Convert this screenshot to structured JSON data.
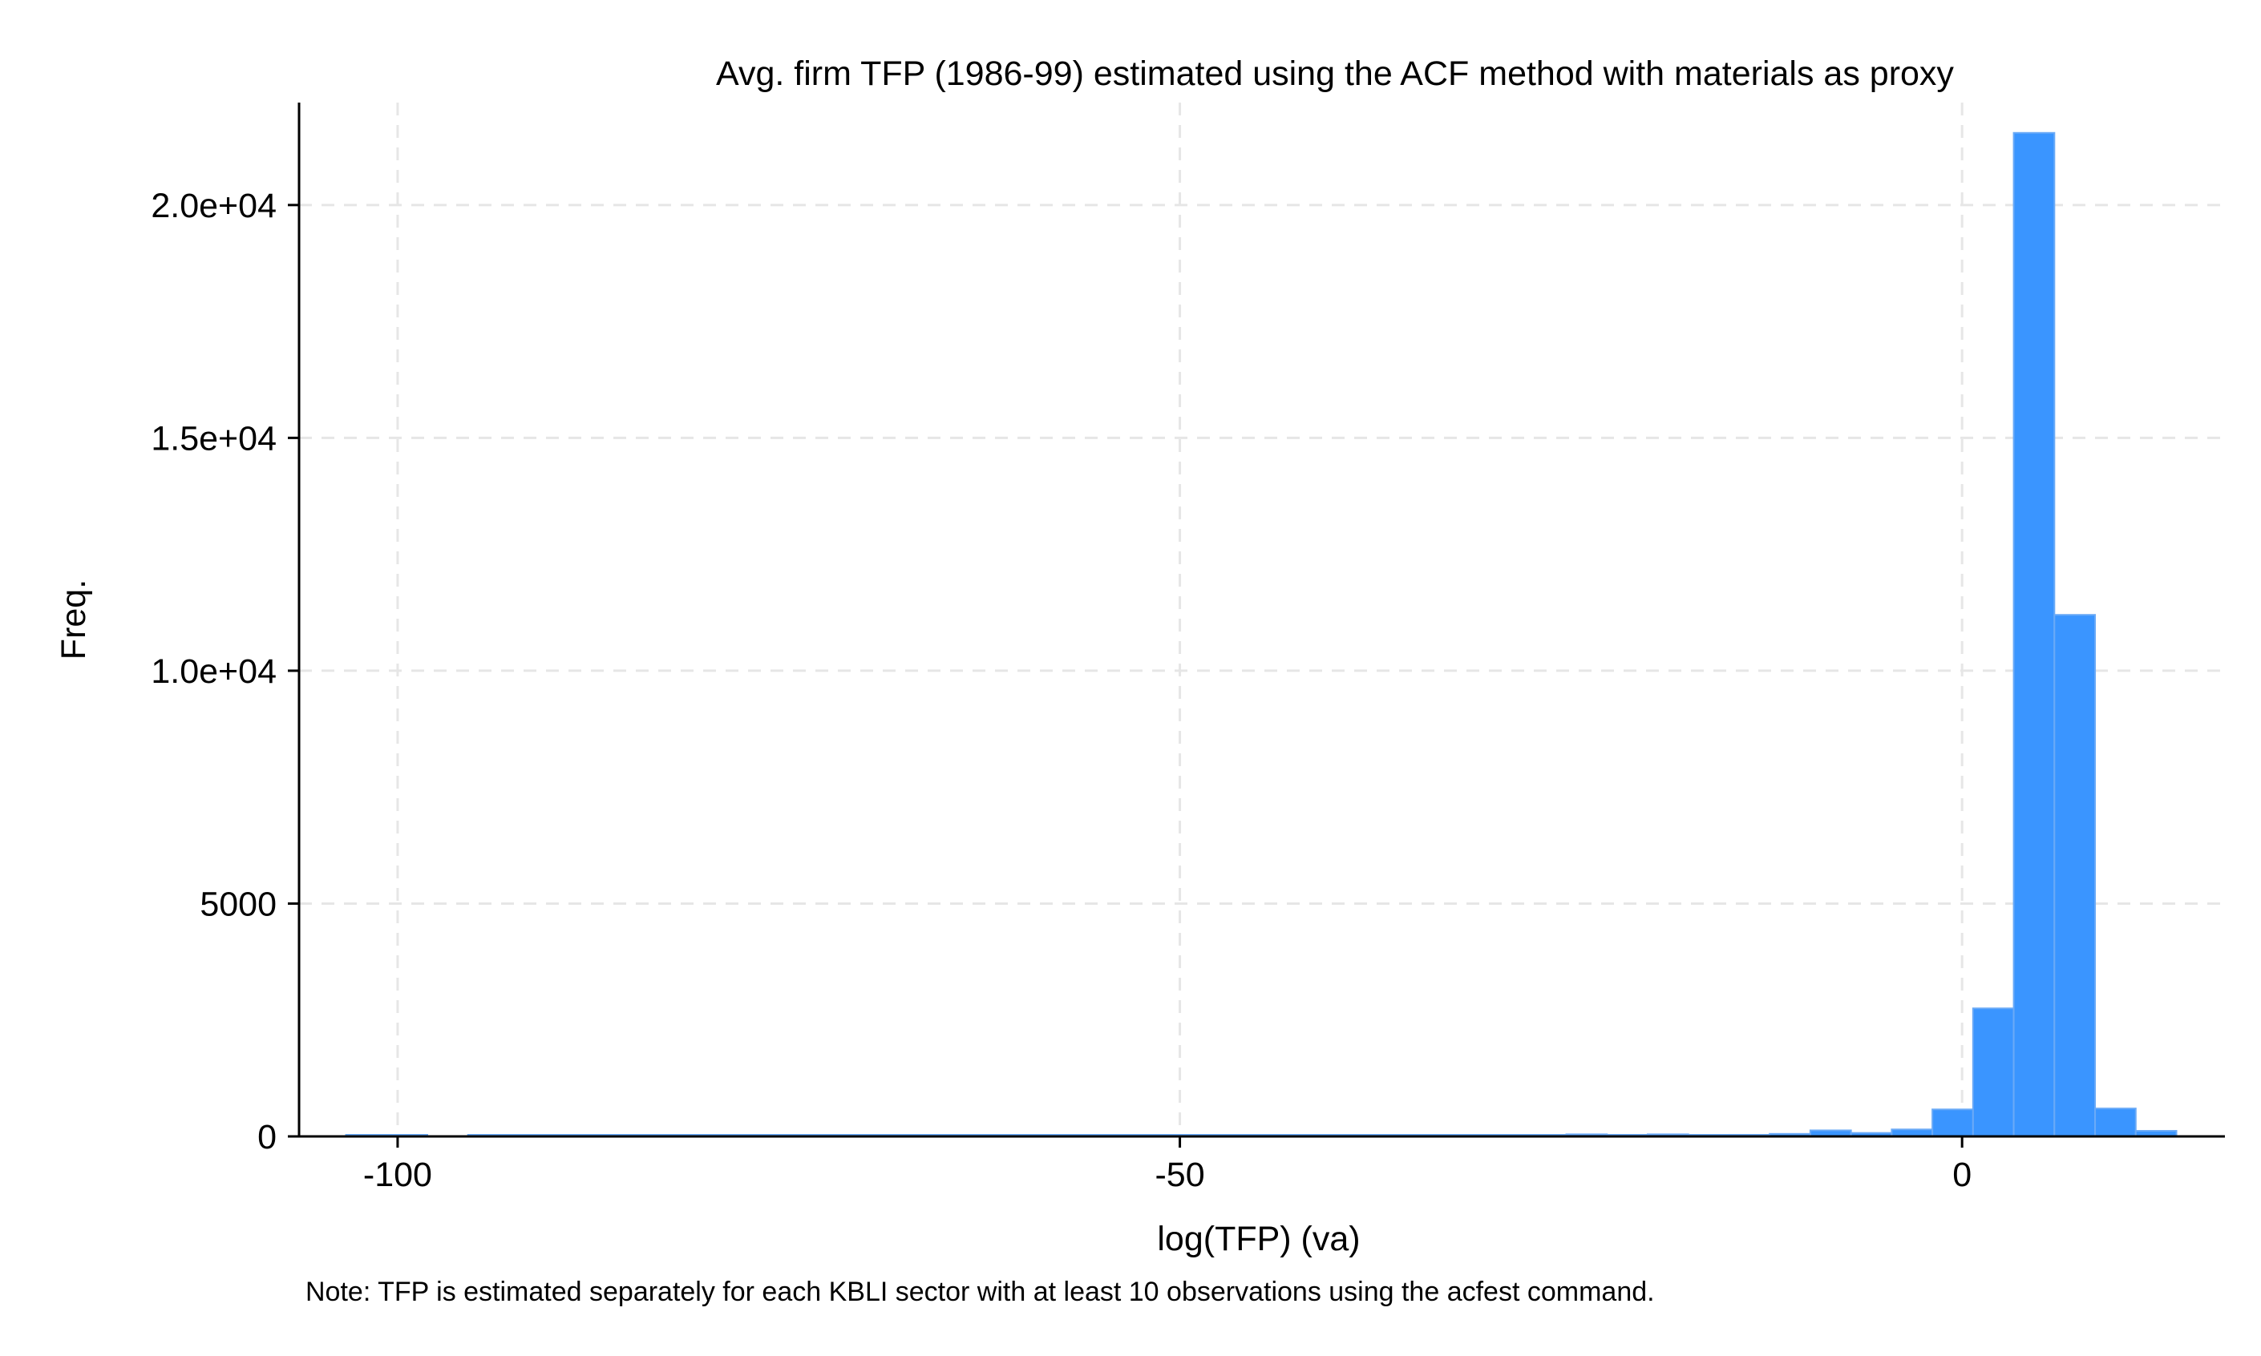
{
  "chart_data": {
    "type": "bar",
    "subtype": "histogram",
    "title": "Avg. firm TFP (1986-99) estimated using the ACF method with materials as proxy",
    "xlabel": "log(TFP) (va)",
    "ylabel": "Freq.",
    "note": "Note: TFP is estimated separately for each KBLI sector with at least 10 observations using the acfest command.",
    "xlim": [
      -106.3,
      16.8
    ],
    "ylim": [
      0,
      22200
    ],
    "x_ticks": [
      {
        "value": -100,
        "label": "-100"
      },
      {
        "value": -50,
        "label": "-50"
      },
      {
        "value": 0,
        "label": "0"
      }
    ],
    "y_ticks": [
      {
        "value": 0,
        "label": "0"
      },
      {
        "value": 5000,
        "label": "5000"
      },
      {
        "value": 10000,
        "label": "1.0e+04"
      },
      {
        "value": 15000,
        "label": "1.5e+04"
      },
      {
        "value": 20000,
        "label": "2.0e+04"
      }
    ],
    "grid": true,
    "bar_color": "#3a95ff",
    "bin_width": 2.6,
    "bin_start": -103.3,
    "bins": [
      {
        "x0": -103.3,
        "value": 12
      },
      {
        "x0": -100.7,
        "value": 12
      },
      {
        "x0": -95.5,
        "value": 10
      },
      {
        "x0": -92.9,
        "value": 10
      },
      {
        "x0": -90.3,
        "value": 10
      },
      {
        "x0": -87.7,
        "value": 10
      },
      {
        "x0": -85.1,
        "value": 10
      },
      {
        "x0": -82.5,
        "value": 8
      },
      {
        "x0": -79.9,
        "value": 8
      },
      {
        "x0": -77.3,
        "value": 10
      },
      {
        "x0": -74.7,
        "value": 8
      },
      {
        "x0": -72.1,
        "value": 8
      },
      {
        "x0": -69.5,
        "value": 8
      },
      {
        "x0": -66.9,
        "value": 8
      },
      {
        "x0": -64.3,
        "value": 8
      },
      {
        "x0": -61.7,
        "value": 8
      },
      {
        "x0": -59.1,
        "value": 8
      },
      {
        "x0": -56.5,
        "value": 8
      },
      {
        "x0": -53.9,
        "value": 8
      },
      {
        "x0": -51.3,
        "value": 10
      },
      {
        "x0": -48.7,
        "value": 10
      },
      {
        "x0": -46.1,
        "value": 10
      },
      {
        "x0": -43.5,
        "value": 10
      },
      {
        "x0": -40.9,
        "value": 10
      },
      {
        "x0": -38.3,
        "value": 10
      },
      {
        "x0": -35.7,
        "value": 15
      },
      {
        "x0": -33.1,
        "value": 15
      },
      {
        "x0": -30.5,
        "value": 30
      },
      {
        "x0": -27.9,
        "value": 25
      },
      {
        "x0": -25.3,
        "value": 45
      },
      {
        "x0": -22.7,
        "value": 35
      },
      {
        "x0": -20.1,
        "value": 45
      },
      {
        "x0": -17.5,
        "value": 30
      },
      {
        "x0": -14.9,
        "value": 35
      },
      {
        "x0": -12.3,
        "value": 55
      },
      {
        "x0": -9.7,
        "value": 130
      },
      {
        "x0": -7.1,
        "value": 75
      },
      {
        "x0": -4.5,
        "value": 150
      },
      {
        "x0": -1.9,
        "value": 580
      },
      {
        "x0": 0.7,
        "value": 2750
      },
      {
        "x0": 3.3,
        "value": 21550
      },
      {
        "x0": 5.9,
        "value": 11200
      },
      {
        "x0": 8.5,
        "value": 600
      },
      {
        "x0": 11.1,
        "value": 120
      }
    ]
  }
}
